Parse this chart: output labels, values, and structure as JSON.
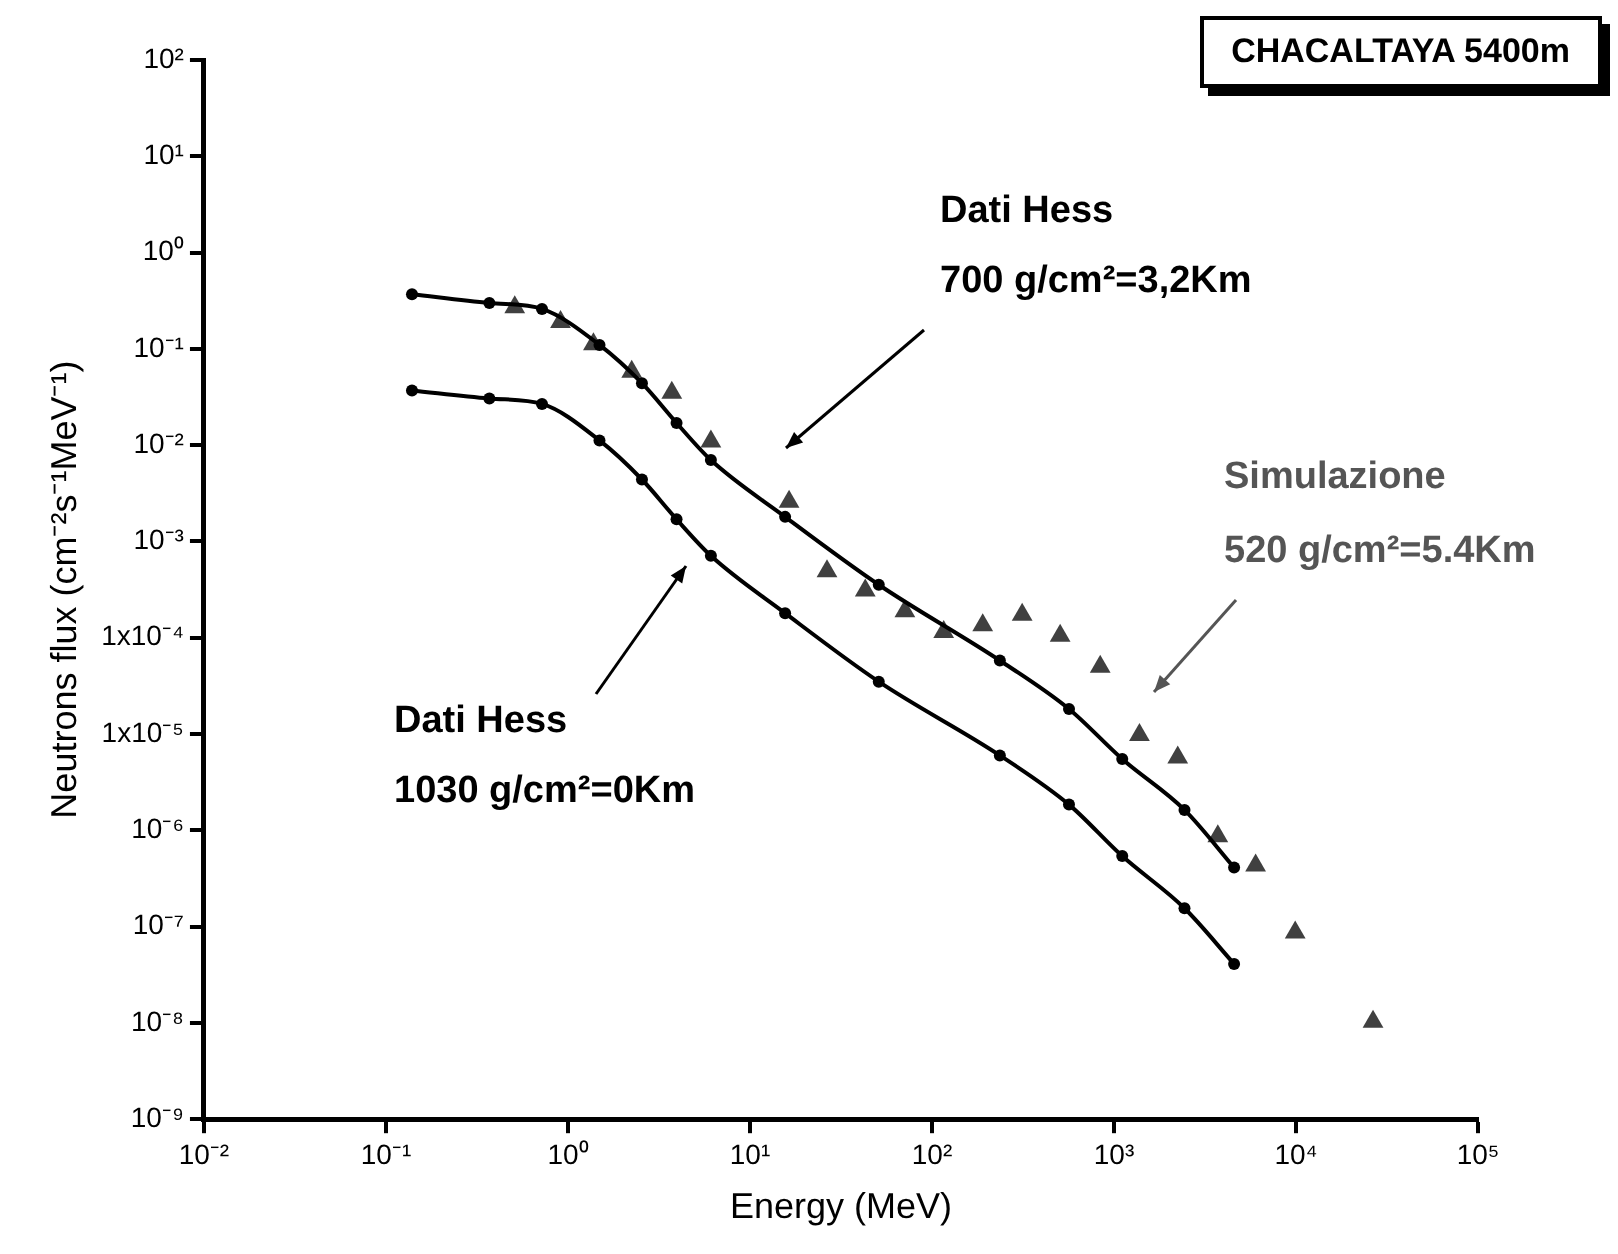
{
  "chart_data": {
    "type": "line",
    "title": "CHACALTAYA 5400m",
    "xlabel": "Energy (MeV)",
    "ylabel": "Neutrons flux (cm⁻²s⁻¹MeV⁻¹)",
    "log": "xy",
    "xlim": [
      0.01,
      100000
    ],
    "xticks": [
      {
        "value": 0.01,
        "label": "10⁻²"
      },
      {
        "value": 0.1,
        "label": "10⁻¹"
      },
      {
        "value": 1,
        "label": "10⁰"
      },
      {
        "value": 10,
        "label": "10¹"
      },
      {
        "value": 100,
        "label": "10²"
      },
      {
        "value": 1000,
        "label": "10³"
      },
      {
        "value": 10000,
        "label": "10⁴"
      },
      {
        "value": 100000,
        "label": "10⁵"
      }
    ],
    "ylim": [
      1e-09,
      100
    ],
    "yticks": [
      {
        "value": 1e-09,
        "label": "10⁻⁹"
      },
      {
        "value": 1e-08,
        "label": "10⁻⁸"
      },
      {
        "value": 1e-07,
        "label": "10⁻⁷"
      },
      {
        "value": 1e-06,
        "label": "10⁻⁶"
      },
      {
        "value": 1e-05,
        "label": "1x10⁻⁵"
      },
      {
        "value": 0.0001,
        "label": "1x10⁻⁴"
      },
      {
        "value": 0.001,
        "label": "10⁻³"
      },
      {
        "value": 0.01,
        "label": "10⁻²"
      },
      {
        "value": 0.1,
        "label": "10⁻¹"
      },
      {
        "value": 1,
        "label": "10⁰"
      },
      {
        "value": 10,
        "label": "10¹"
      },
      {
        "value": 100,
        "label": "10²"
      }
    ],
    "annotations": [
      "Dati Hess",
      "700 g/cm²=3,2Km",
      "Dati Hess",
      "1030 g/cm²=0Km",
      "Simulazione",
      "520 g/cm²=5.4Km"
    ],
    "series": [
      {
        "color": "#000000",
        "marker": "circle",
        "x": [
          0.139,
          0.37,
          0.72,
          1.49,
          2.55,
          3.95,
          6.1,
          15.6,
          51,
          236,
          566,
          1110,
          2440,
          4570
        ],
        "values": [
          0.37,
          0.3,
          0.26,
          0.11,
          0.044,
          0.017,
          0.007,
          0.0018,
          0.000355,
          5.8e-05,
          1.82e-05,
          5.5e-06,
          1.63e-06,
          4.1e-07
        ]
      },
      {
        "color": "#000000",
        "marker": "circle",
        "x": [
          0.139,
          0.37,
          0.72,
          1.49,
          2.55,
          3.95,
          6.1,
          15.6,
          51,
          236,
          566,
          1110,
          2440,
          4570
        ],
        "values": [
          0.037,
          0.0305,
          0.0268,
          0.0112,
          0.0044,
          0.0017,
          0.00071,
          0.00018,
          3.5e-05,
          6e-06,
          1.85e-06,
          5.4e-07,
          1.55e-07,
          4.1e-08
        ]
      },
      {
        "type": "scatter",
        "color": "#404040",
        "marker": "triangle",
        "x": [
          0.51,
          0.91,
          1.38,
          2.24,
          3.72,
          6.1,
          16.4,
          26.5,
          43,
          71,
          116,
          190,
          313,
          506,
          840,
          1380,
          2240,
          3720,
          6000,
          9900,
          26500
        ],
        "values": [
          0.27,
          0.19,
          0.112,
          0.058,
          0.035,
          0.0109,
          0.00259,
          0.00049,
          0.00031,
          0.000189,
          0.000115,
          0.000135,
          0.000173,
          0.000105,
          5e-05,
          9.8e-06,
          5.7e-06,
          8.7e-07,
          4.3e-07,
          8.7e-08,
          1.03e-08
        ]
      }
    ]
  }
}
